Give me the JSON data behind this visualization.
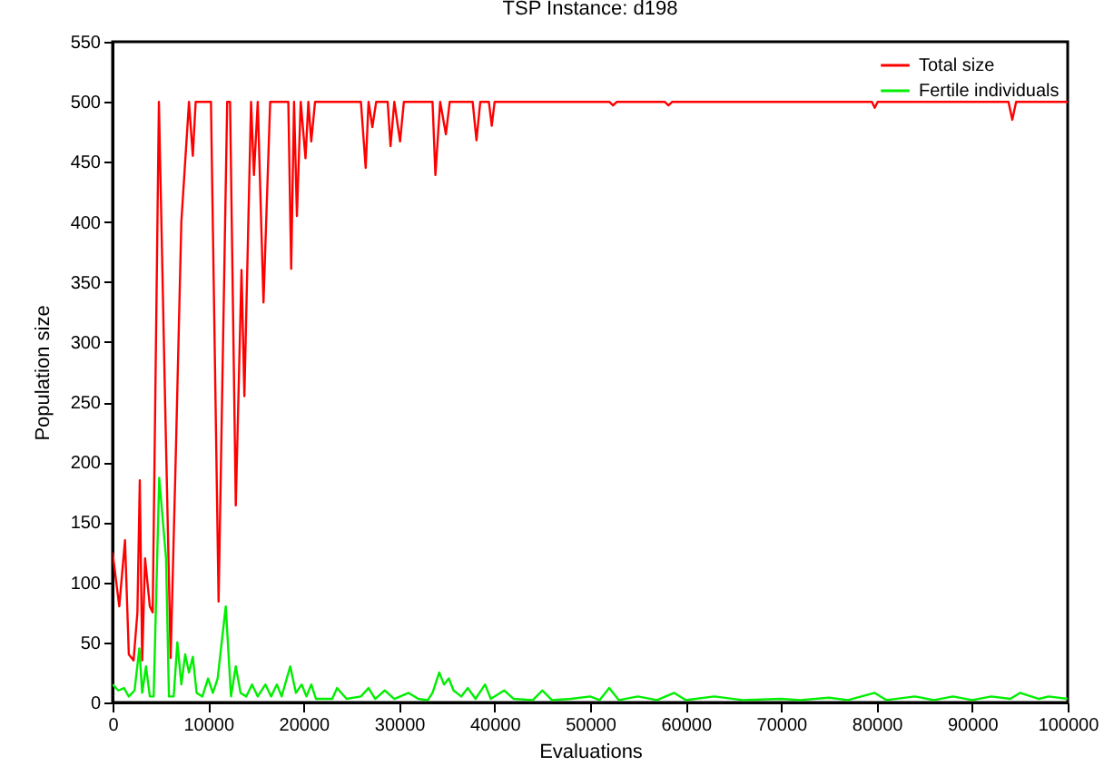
{
  "chart_data": {
    "type": "line",
    "title": "TSP Instance: d198",
    "xlabel": "Evaluations",
    "ylabel": "Population size",
    "xlim": [
      0,
      100000
    ],
    "xticks": [
      0,
      10000,
      20000,
      30000,
      40000,
      50000,
      60000,
      70000,
      80000,
      90000,
      100000
    ],
    "ylim": [
      0,
      550
    ],
    "yticks": [
      0,
      50,
      100,
      150,
      200,
      250,
      300,
      350,
      400,
      450,
      500,
      550
    ],
    "grid": false,
    "legend": "top right",
    "marker": "none",
    "line_style": "solid",
    "series": [
      {
        "name": "Total size",
        "color": "#ff0000",
        "x": [
          0,
          700,
          1300,
          1700,
          2200,
          2600,
          2850,
          3100,
          3400,
          3900,
          4200,
          4850,
          5500,
          6080,
          6600,
          7200,
          8000,
          8400,
          8700,
          10300,
          11100,
          12000,
          12300,
          12900,
          13500,
          13800,
          14500,
          14800,
          15200,
          15800,
          16500,
          18400,
          18700,
          19000,
          19300,
          19700,
          20200,
          20500,
          20800,
          21200,
          22000,
          26000,
          26500,
          26800,
          27200,
          27600,
          28800,
          29100,
          29500,
          30100,
          30500,
          33500,
          33800,
          34300,
          34900,
          35300,
          37700,
          38100,
          38500,
          39400,
          39700,
          40000,
          52000,
          52400,
          52800,
          57800,
          58200,
          58600,
          79500,
          79800,
          80100,
          93800,
          94200,
          94600,
          100000
        ],
        "values": [
          125,
          80,
          135,
          40,
          35,
          75,
          185,
          35,
          120,
          80,
          75,
          500,
          250,
          37,
          200,
          400,
          500,
          455,
          500,
          500,
          84,
          500,
          500,
          164,
          360,
          255,
          500,
          439,
          500,
          333,
          500,
          500,
          361,
          500,
          405,
          500,
          453,
          500,
          467,
          500,
          500,
          500,
          445,
          500,
          479,
          500,
          500,
          463,
          500,
          467,
          500,
          500,
          439,
          500,
          473,
          500,
          500,
          468,
          500,
          500,
          480,
          500,
          500,
          497,
          500,
          500,
          497,
          500,
          500,
          495,
          500,
          500,
          485,
          500,
          500
        ]
      },
      {
        "name": "Fertile individuals",
        "color": "#00ee00",
        "x": [
          0,
          600,
          1200,
          1700,
          2300,
          2800,
          3100,
          3500,
          3900,
          4300,
          4880,
          5600,
          5900,
          6400,
          6780,
          7200,
          7600,
          8000,
          8400,
          8800,
          9400,
          10000,
          10500,
          11000,
          11850,
          12400,
          12900,
          13400,
          14000,
          14600,
          15200,
          16000,
          16600,
          17200,
          17700,
          18600,
          19200,
          19800,
          20300,
          20800,
          21300,
          23000,
          23500,
          24500,
          26000,
          26800,
          27500,
          28500,
          29500,
          31000,
          32000,
          33000,
          33500,
          34200,
          34700,
          35200,
          35700,
          36500,
          37200,
          38000,
          39000,
          39600,
          41000,
          42000,
          44000,
          45000,
          46000,
          48000,
          50000,
          51000,
          52000,
          53000,
          55000,
          57000,
          58800,
          60000,
          63000,
          66000,
          70000,
          72000,
          75000,
          77000,
          79800,
          81000,
          84000,
          86000,
          88000,
          90000,
          92000,
          94000,
          95000,
          97000,
          98000,
          100000
        ],
        "values": [
          15,
          10,
          12,
          5,
          10,
          45,
          8,
          30,
          5,
          5,
          187,
          120,
          5,
          5,
          50,
          15,
          40,
          25,
          38,
          8,
          5,
          20,
          8,
          20,
          80,
          5,
          30,
          8,
          5,
          15,
          5,
          15,
          5,
          15,
          5,
          30,
          8,
          15,
          5,
          15,
          3,
          3,
          12,
          3,
          5,
          12,
          3,
          10,
          3,
          8,
          3,
          2,
          8,
          25,
          15,
          20,
          10,
          5,
          12,
          3,
          15,
          3,
          10,
          3,
          2,
          10,
          2,
          3,
          5,
          2,
          12,
          2,
          5,
          2,
          8,
          2,
          5,
          2,
          3,
          2,
          4,
          2,
          8,
          2,
          5,
          2,
          5,
          2,
          5,
          3,
          8,
          3,
          5,
          3
        ]
      }
    ]
  }
}
